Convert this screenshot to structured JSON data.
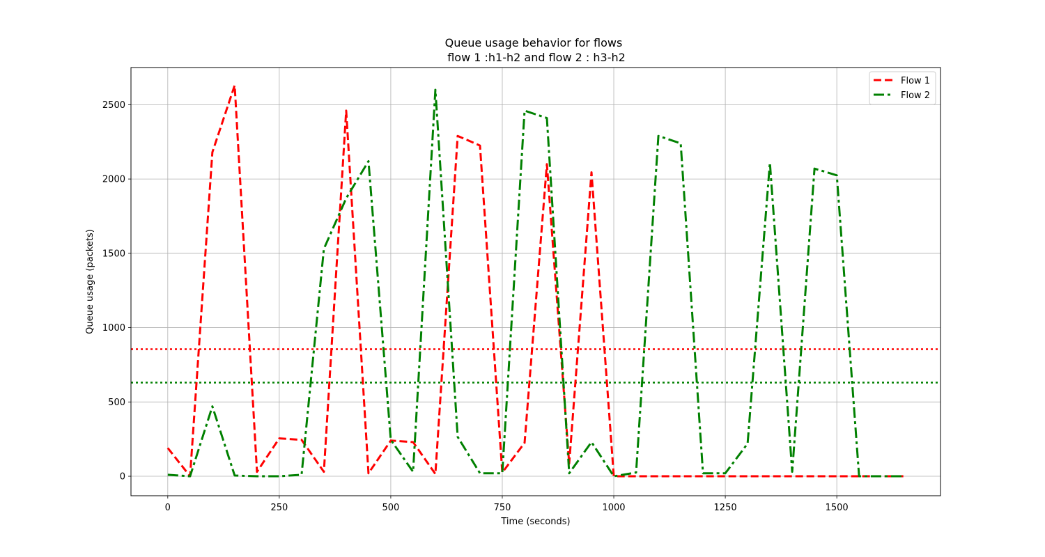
{
  "chart_data": {
    "type": "line",
    "title_line1": "Queue usage behavior for flows",
    "title_line2": " flow 1 :h1-h2 and flow 2 : h3-h2",
    "xlabel": "Time (seconds)",
    "ylabel": "Queue usage (packets)",
    "xlim": [
      -82.5,
      1732.5
    ],
    "ylim": [
      -131,
      2750
    ],
    "x_ticks": [
      0,
      250,
      500,
      750,
      1000,
      1250,
      1500
    ],
    "y_ticks": [
      0,
      500,
      1000,
      1500,
      2000,
      2500
    ],
    "grid": true,
    "legend_position": "top-right",
    "x": [
      0,
      50,
      100,
      150,
      200,
      250,
      300,
      350,
      400,
      450,
      500,
      550,
      600,
      650,
      700,
      750,
      800,
      850,
      900,
      950,
      1000,
      1050,
      1100,
      1150,
      1200,
      1250,
      1300,
      1350,
      1400,
      1450,
      1500,
      1550,
      1600,
      1650
    ],
    "series": [
      {
        "name": "Flow 1",
        "color": "#ff0000",
        "style": "dashed",
        "values": [
          190,
          0,
          2180,
          2630,
          30,
          255,
          245,
          30,
          2460,
          20,
          240,
          230,
          15,
          2290,
          2225,
          25,
          225,
          2100,
          85,
          2045,
          0,
          0,
          0,
          0,
          0,
          0,
          0,
          0,
          0,
          0,
          0,
          0,
          0,
          0
        ]
      },
      {
        "name": "Flow 2",
        "color": "#008000",
        "style": "dashdot",
        "values": [
          10,
          0,
          470,
          5,
          0,
          0,
          10,
          1530,
          1870,
          2120,
          245,
          30,
          2600,
          265,
          20,
          20,
          2460,
          2410,
          20,
          230,
          0,
          25,
          2290,
          2240,
          20,
          20,
          220,
          2110,
          30,
          2070,
          2025,
          0,
          0,
          0
        ]
      }
    ],
    "reference_lines": [
      {
        "value": 855,
        "color": "#ff0000",
        "style": "dotted"
      },
      {
        "value": 630,
        "color": "#008000",
        "style": "dotted"
      }
    ]
  }
}
